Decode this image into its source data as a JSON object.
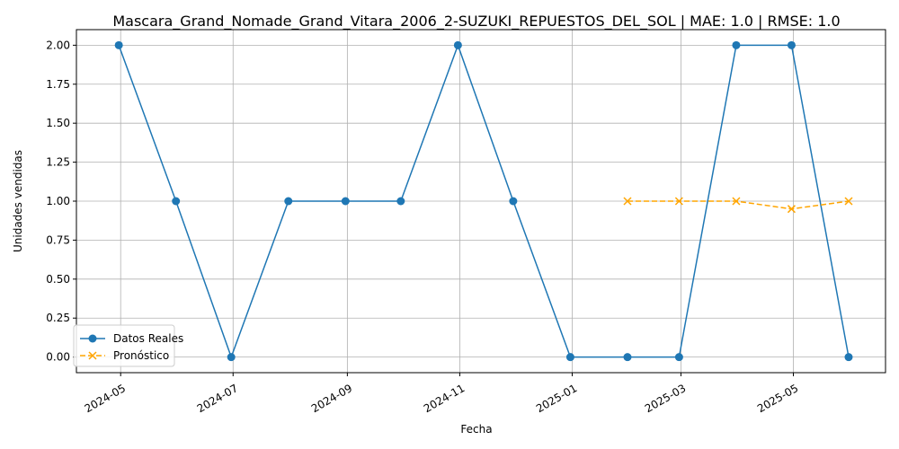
{
  "chart_data": {
    "type": "line",
    "title": "Mascara_Grand_Nomade_Grand_Vitara_2006_2-SUZUKI_REPUESTOS_DEL_SOL | MAE: 1.0 | RMSE: 1.0",
    "xlabel": "Fecha",
    "ylabel": "Unidades vendidas",
    "xlim": [
      "2024-04-07",
      "2025-06-20"
    ],
    "ylim": [
      -0.1,
      2.1
    ],
    "x_ticks": [
      "2024-05",
      "2024-07",
      "2024-09",
      "2024-11",
      "2025-01",
      "2025-03",
      "2025-05"
    ],
    "y_ticks": [
      "0.00",
      "0.25",
      "0.50",
      "0.75",
      "1.00",
      "1.25",
      "1.50",
      "1.75",
      "2.00"
    ],
    "grid": true,
    "legend_position": "lower-left",
    "series": [
      {
        "name": "Datos Reales",
        "color": "#1f77b4",
        "marker": "circle",
        "linestyle": "solid",
        "points": [
          {
            "x": "2024-04-30",
            "y": 2
          },
          {
            "x": "2024-05-31",
            "y": 1
          },
          {
            "x": "2024-06-30",
            "y": 0
          },
          {
            "x": "2024-07-31",
            "y": 1
          },
          {
            "x": "2024-08-31",
            "y": 1
          },
          {
            "x": "2024-09-30",
            "y": 1
          },
          {
            "x": "2024-10-31",
            "y": 2
          },
          {
            "x": "2024-11-30",
            "y": 1
          },
          {
            "x": "2024-12-31",
            "y": 0
          },
          {
            "x": "2025-01-31",
            "y": 0
          },
          {
            "x": "2025-02-28",
            "y": 0
          },
          {
            "x": "2025-03-31",
            "y": 2
          },
          {
            "x": "2025-04-30",
            "y": 2
          },
          {
            "x": "2025-05-31",
            "y": 0
          }
        ]
      },
      {
        "name": "Pronóstico",
        "color": "#ffa500",
        "marker": "x",
        "linestyle": "dashed",
        "points": [
          {
            "x": "2025-01-31",
            "y": 1.0
          },
          {
            "x": "2025-02-28",
            "y": 1.0
          },
          {
            "x": "2025-03-31",
            "y": 1.0
          },
          {
            "x": "2025-04-30",
            "y": 0.95
          },
          {
            "x": "2025-05-31",
            "y": 1.0
          }
        ]
      }
    ]
  }
}
